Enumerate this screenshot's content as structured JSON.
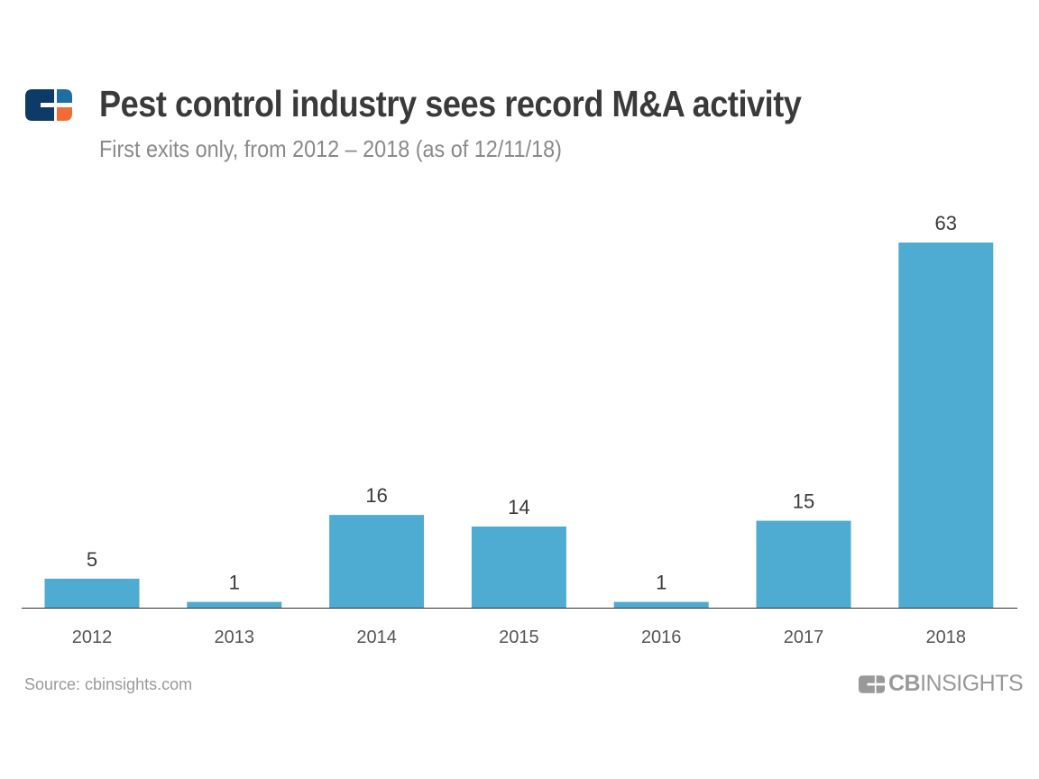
{
  "header": {
    "title": "Pest control industry sees record M&A activity",
    "subtitle": "First exits only, from 2012 – 2018 (as of 12/11/18)"
  },
  "footer": {
    "source": "Source: cbinsights.com",
    "brand_bold": "CB",
    "brand_rest": "INSIGHTS"
  },
  "logo": {
    "colors": {
      "navy": "#0d3a66",
      "blue": "#1c6fa3",
      "orange": "#f26a35"
    },
    "text": "CB INSIGHTS"
  },
  "chart_data": {
    "type": "bar",
    "title": "Pest control industry sees record M&A activity",
    "subtitle": "First exits only, from 2012 – 2018 (as of 12/11/18)",
    "categories": [
      "2012",
      "2013",
      "2014",
      "2015",
      "2016",
      "2017",
      "2018"
    ],
    "values": [
      5,
      1,
      16,
      14,
      1,
      15,
      63
    ],
    "ylim": [
      0,
      63
    ],
    "grid": false,
    "bar_color": "#4eabd1",
    "data_labels": true
  }
}
